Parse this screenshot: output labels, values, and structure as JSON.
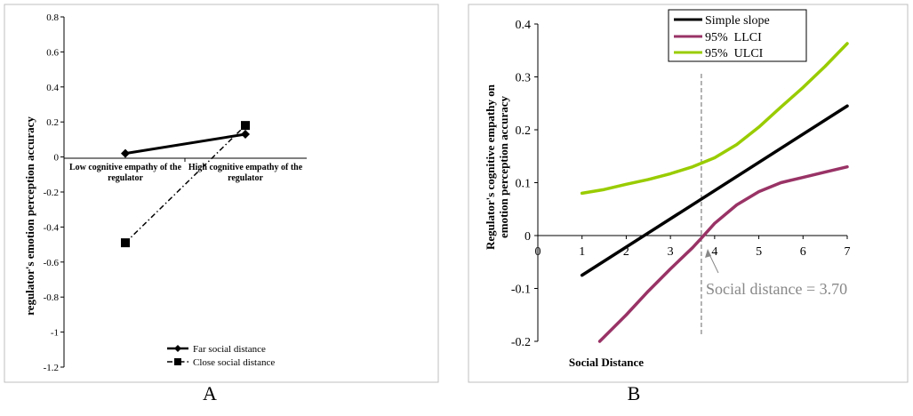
{
  "chart_data": [
    {
      "panel": "A",
      "type": "line",
      "title": "",
      "xlabel": "",
      "ylabel": "regulator's emotion perception accuracy",
      "ylim": [
        -1.2,
        0.8
      ],
      "yticks": [
        0.8,
        0.6,
        0.4,
        0.2,
        0,
        -0.2,
        -0.4,
        -0.6,
        -0.8,
        -1,
        -1.2
      ],
      "ytick_labels": [
        "0.8",
        "0.6",
        "0.4",
        "0.2",
        "0",
        "-0.2",
        "-0.4",
        "-0.6",
        "-0.8",
        "-1",
        "-1.2"
      ],
      "categories": [
        [
          "Low cognitive empathy of the",
          "regulator"
        ],
        [
          "High cognitive empathy of the",
          "regulator"
        ]
      ],
      "series": [
        {
          "name": "Far social distance",
          "values": [
            0.02,
            0.13
          ],
          "marker": "diamond",
          "line": "solid"
        },
        {
          "name": "Close social distance",
          "values": [
            -0.49,
            0.18
          ],
          "marker": "square",
          "line": "dashdot"
        }
      ],
      "legend": "bottom-right",
      "caption": "A"
    },
    {
      "panel": "B",
      "type": "line",
      "title": "",
      "xlabel": "Social Distance",
      "ylabel": [
        "Regulator's cognitive empathy on",
        "emotion perception accuracy"
      ],
      "xlim": [
        0,
        7
      ],
      "ylim": [
        -0.2,
        0.4
      ],
      "xticks": [
        "0",
        "1",
        "2",
        "3",
        "4",
        "5",
        "6",
        "7"
      ],
      "yticks": [
        0.4,
        0.3,
        0.2,
        0.1,
        0,
        -0.1,
        -0.2
      ],
      "ytick_labels": [
        "0.4",
        "0.3",
        "0.2",
        "0.1",
        "0",
        "-0.1",
        "-0.2"
      ],
      "series": [
        {
          "name": "Simple slope",
          "color": "#000000",
          "x": [
            1,
            7
          ],
          "y": [
            -0.075,
            0.245
          ]
        },
        {
          "name": "95%  LLCI",
          "color": "#993366",
          "x": [
            1.4,
            2,
            2.5,
            3,
            3.5,
            3.7,
            4,
            4.5,
            5,
            5.5,
            6,
            6.5,
            7
          ],
          "y": [
            -0.2,
            -0.15,
            -0.105,
            -0.063,
            -0.023,
            -0.005,
            0.023,
            0.058,
            0.083,
            0.1,
            0.11,
            0.12,
            0.13
          ]
        },
        {
          "name": "95%  ULCI",
          "color": "#99CC00",
          "x": [
            1,
            1.5,
            2,
            2.5,
            3,
            3.5,
            4,
            4.5,
            5,
            5.5,
            6,
            6.5,
            7
          ],
          "y": [
            0.08,
            0.087,
            0.097,
            0.106,
            0.117,
            0.13,
            0.147,
            0.172,
            0.205,
            0.243,
            0.28,
            0.32,
            0.363
          ]
        }
      ],
      "reference_line_x": 3.7,
      "annotation": "Social distance = 3.70",
      "legend": "top-center",
      "caption": "B"
    }
  ]
}
